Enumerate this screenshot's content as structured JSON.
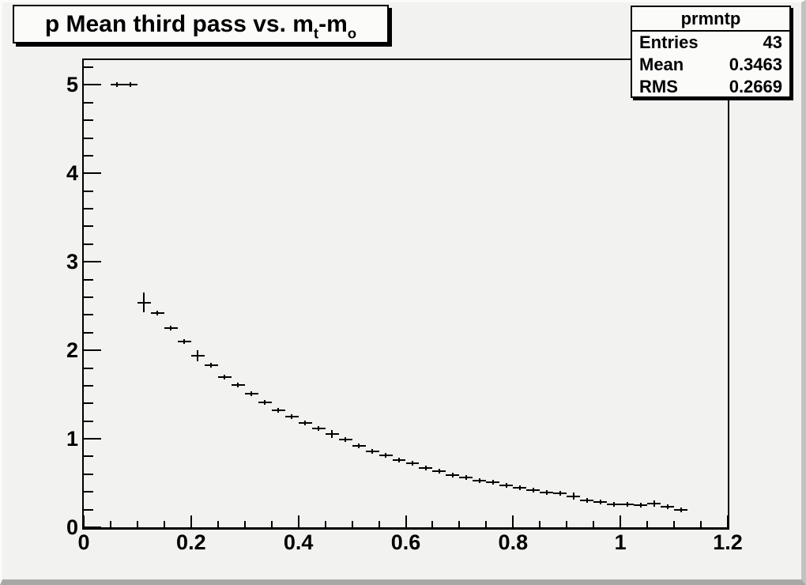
{
  "window": {
    "background": "#f2f2f0",
    "bevel_light": "#fbfbfa",
    "bevel_dark": "#a8a8a6",
    "frame_color": "#000000"
  },
  "title": {
    "part1": "p Mean third pass vs. m",
    "sub1": "t",
    "part2": "-m",
    "sub2": "o"
  },
  "stats": {
    "title": "prmntp",
    "rows": [
      {
        "label": "Entries",
        "value": "43"
      },
      {
        "label": "Mean",
        "value": "0.3463"
      },
      {
        "label": "RMS",
        "value": "0.2669"
      }
    ]
  },
  "chart_data": {
    "type": "scatter",
    "subtype": "profile-histogram-with-error-bars",
    "title": "p Mean third pass vs. m_t-m_o",
    "xlabel": "",
    "ylabel": "",
    "xlim": [
      0,
      1.2
    ],
    "ylim": [
      0,
      5.28
    ],
    "grid": false,
    "legend": false,
    "x_ticks": [
      {
        "v": 0,
        "label": "0"
      },
      {
        "v": 0.2,
        "label": "0.2"
      },
      {
        "v": 0.4,
        "label": "0.4"
      },
      {
        "v": 0.6,
        "label": "0.6"
      },
      {
        "v": 0.8,
        "label": "0.8"
      },
      {
        "v": 1,
        "label": "1"
      },
      {
        "v": 1.2,
        "label": "1.2"
      }
    ],
    "y_ticks": [
      {
        "v": 0,
        "label": "0"
      },
      {
        "v": 1,
        "label": "1"
      },
      {
        "v": 2,
        "label": "2"
      },
      {
        "v": 3,
        "label": "3"
      },
      {
        "v": 4,
        "label": "4"
      },
      {
        "v": 5,
        "label": "5"
      }
    ],
    "x_minor_step": 0.05,
    "y_minor_step": 0.2,
    "bin_half_width": 0.0125,
    "points": [
      {
        "x": 0.0625,
        "y": 5.0,
        "ey": 0
      },
      {
        "x": 0.0875,
        "y": 5.0,
        "ey": 0
      },
      {
        "x": 0.1125,
        "y": 2.54,
        "ey": 0.11
      },
      {
        "x": 0.1375,
        "y": 2.42,
        "ey": 0.03
      },
      {
        "x": 0.1625,
        "y": 2.25,
        "ey": 0.03
      },
      {
        "x": 0.1875,
        "y": 2.1,
        "ey": 0.03
      },
      {
        "x": 0.2125,
        "y": 1.94,
        "ey": 0.065
      },
      {
        "x": 0.2375,
        "y": 1.83,
        "ey": 0.025
      },
      {
        "x": 0.2625,
        "y": 1.7,
        "ey": 0.025
      },
      {
        "x": 0.2875,
        "y": 1.61,
        "ey": 0.02
      },
      {
        "x": 0.3125,
        "y": 1.51,
        "ey": 0.02
      },
      {
        "x": 0.3375,
        "y": 1.41,
        "ey": 0.02
      },
      {
        "x": 0.3625,
        "y": 1.32,
        "ey": 0.02
      },
      {
        "x": 0.3875,
        "y": 1.25,
        "ey": 0.02
      },
      {
        "x": 0.4125,
        "y": 1.18,
        "ey": 0.02
      },
      {
        "x": 0.4375,
        "y": 1.12,
        "ey": 0.02
      },
      {
        "x": 0.4625,
        "y": 1.05,
        "ey": 0.045
      },
      {
        "x": 0.4875,
        "y": 0.99,
        "ey": 0.02
      },
      {
        "x": 0.5125,
        "y": 0.92,
        "ey": 0.025
      },
      {
        "x": 0.5375,
        "y": 0.86,
        "ey": 0.02
      },
      {
        "x": 0.5625,
        "y": 0.81,
        "ey": 0.02
      },
      {
        "x": 0.5875,
        "y": 0.76,
        "ey": 0.02
      },
      {
        "x": 0.6125,
        "y": 0.72,
        "ey": 0.02
      },
      {
        "x": 0.6375,
        "y": 0.67,
        "ey": 0.02
      },
      {
        "x": 0.6625,
        "y": 0.63,
        "ey": 0.02
      },
      {
        "x": 0.6875,
        "y": 0.59,
        "ey": 0.02
      },
      {
        "x": 0.7125,
        "y": 0.56,
        "ey": 0.02
      },
      {
        "x": 0.7375,
        "y": 0.53,
        "ey": 0.02
      },
      {
        "x": 0.7625,
        "y": 0.51,
        "ey": 0.02
      },
      {
        "x": 0.7875,
        "y": 0.47,
        "ey": 0.02
      },
      {
        "x": 0.8125,
        "y": 0.45,
        "ey": 0.02
      },
      {
        "x": 0.8375,
        "y": 0.42,
        "ey": 0.03
      },
      {
        "x": 0.8625,
        "y": 0.39,
        "ey": 0.02
      },
      {
        "x": 0.8875,
        "y": 0.38,
        "ey": 0.02
      },
      {
        "x": 0.9125,
        "y": 0.35,
        "ey": 0.04
      },
      {
        "x": 0.9375,
        "y": 0.3,
        "ey": 0.02
      },
      {
        "x": 0.9625,
        "y": 0.29,
        "ey": 0.02
      },
      {
        "x": 0.9875,
        "y": 0.26,
        "ey": 0.02
      },
      {
        "x": 1.0125,
        "y": 0.26,
        "ey": 0.02
      },
      {
        "x": 1.0375,
        "y": 0.25,
        "ey": 0.02
      },
      {
        "x": 1.0625,
        "y": 0.27,
        "ey": 0.035
      },
      {
        "x": 1.0875,
        "y": 0.23,
        "ey": 0.02
      },
      {
        "x": 1.1125,
        "y": 0.2,
        "ey": 0.02
      }
    ],
    "stats_box": {
      "name": "prmntp",
      "entries": 43,
      "mean": 0.3463,
      "rms": 0.2669
    }
  }
}
